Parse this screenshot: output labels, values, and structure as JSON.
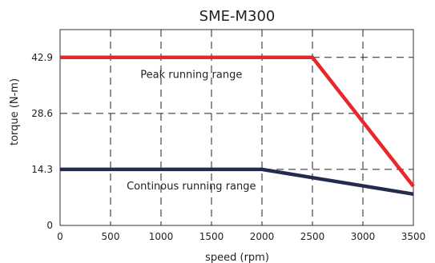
{
  "chart_data": {
    "type": "line",
    "title": "SME-M300",
    "xlabel": "speed (rpm)",
    "ylabel": "torque (N-m)",
    "xlim": [
      0,
      3500
    ],
    "ylim": [
      0,
      50
    ],
    "x_ticks": [
      0,
      500,
      1000,
      1500,
      2000,
      2500,
      3000,
      3500
    ],
    "x_tick_labels": [
      "0",
      "500",
      "1000",
      "1500",
      "2000",
      "2500",
      "3000",
      "3500"
    ],
    "y_ticks": [
      0,
      14.3,
      28.6,
      42.9
    ],
    "y_tick_labels": [
      "0",
      "14.3",
      "28.6",
      "42.9"
    ],
    "grid": true,
    "grid_style": "dashed",
    "series": [
      {
        "color": "#e8262b",
        "points": [
          [
            0,
            42.9
          ],
          [
            2500,
            42.9
          ],
          [
            3500,
            10.0
          ]
        ]
      },
      {
        "color": "#262a4e",
        "points": [
          [
            0,
            14.3
          ],
          [
            2000,
            14.3
          ],
          [
            3500,
            8.0
          ]
        ]
      }
    ],
    "annotations": [
      {
        "text": "Peak running range",
        "x": 1300,
        "y": 38.5
      },
      {
        "text": "Continous running range",
        "x": 1300,
        "y": 10.0
      }
    ]
  }
}
